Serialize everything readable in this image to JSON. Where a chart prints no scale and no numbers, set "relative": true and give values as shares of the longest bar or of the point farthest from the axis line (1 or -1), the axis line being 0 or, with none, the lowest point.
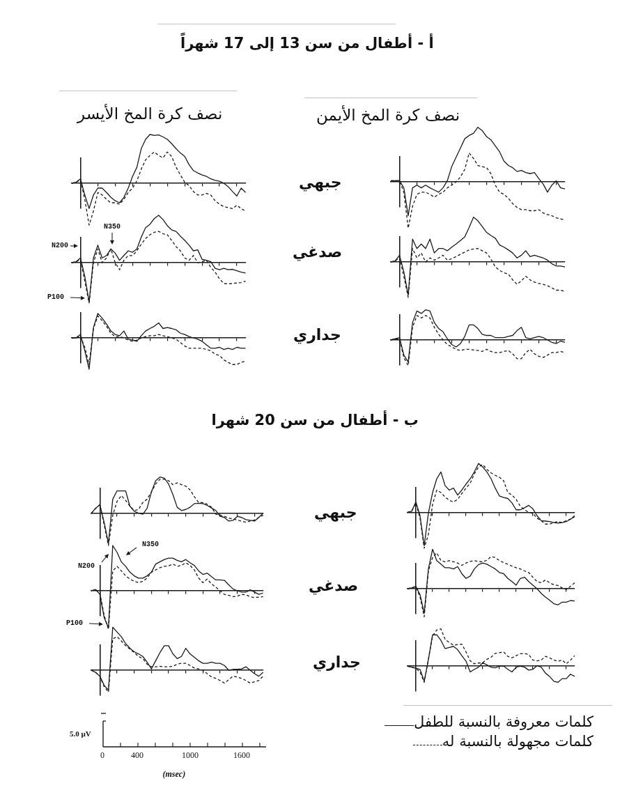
{
  "chart_data": [
    {
      "type": "line",
      "relative": true,
      "title": "أ - أطفال من سن 13 إلى 17 شهراً",
      "subtitle": "نصف كرة المخ الأيسر",
      "categories": [
        null,
        null,
        null,
        null,
        null,
        null,
        null,
        null,
        null,
        null,
        null,
        null,
        null,
        null,
        null,
        null,
        null,
        null,
        null,
        null,
        null,
        null,
        null,
        null,
        null,
        null,
        null,
        null,
        null,
        null,
        null,
        null,
        null,
        null,
        null,
        null,
        null,
        null,
        null,
        null,
        null
      ],
      "series": [
        {
          "color": "#1a1a1a",
          "line_style": "solid",
          "values": [
            0,
            0.02,
            0.09,
            -0.24,
            -0.52,
            -0.24,
            -0.1,
            -0.1,
            -0.19,
            -0.29,
            -0.36,
            -0.4,
            -0.29,
            -0.1,
            0.14,
            0.33,
            0.71,
            0.9,
            1,
            0.98,
            0.99,
            0.95,
            0.9,
            0.81,
            0.71,
            0.62,
            0.55,
            0.38,
            0.26,
            0.21,
            0.17,
            0.14,
            0.09,
            0.06,
            0.04,
            0,
            -0.07,
            -0.17,
            -0.26,
            -0.1,
            -0.19
          ]
        },
        {
          "color": "#1a1a1a",
          "line_style": "dashed",
          "values": [
            0,
            0.02,
            0.07,
            -0.33,
            -0.86,
            -0.57,
            -0.19,
            -0.24,
            -0.33,
            -0.4,
            -0.4,
            -0.43,
            -0.33,
            -0.19,
            -0.1,
            0.05,
            0.29,
            0.48,
            0.57,
            0.64,
            0.57,
            0.52,
            0.64,
            0.55,
            0.33,
            0.17,
            0.02,
            -0.05,
            -0.17,
            -0.24,
            -0.24,
            -0.21,
            -0.24,
            -0.36,
            -0.43,
            -0.48,
            -0.5,
            -0.52,
            -0.45,
            -0.52,
            -0.57
          ]
        }
      ]
    },
    {
      "type": "line",
      "relative": true,
      "subtitle": "نصف كرة المخ الأيمن",
      "ylabel": "جبهي",
      "categories": [
        null,
        null,
        null,
        null,
        null,
        null,
        null,
        null,
        null,
        null,
        null,
        null,
        null,
        null,
        null,
        null,
        null,
        null,
        null,
        null,
        null,
        null,
        null,
        null,
        null,
        null,
        null,
        null,
        null,
        null,
        null,
        null,
        null,
        null,
        null,
        null,
        null,
        null,
        null,
        null,
        null
      ],
      "series": [
        {
          "color": "#1a1a1a",
          "line_style": "solid",
          "values": [
            0.02,
            0.02,
            0.02,
            -0.11,
            -0.62,
            -0.11,
            -0.06,
            -0.11,
            -0.06,
            -0.11,
            -0.15,
            -0.19,
            -0.11,
            0.02,
            0.28,
            0.45,
            0.62,
            0.79,
            0.85,
            0.89,
            1,
            0.94,
            0.83,
            0.77,
            0.66,
            0.55,
            0.38,
            0.3,
            0.26,
            0.19,
            0.21,
            0.17,
            0.15,
            0.17,
            0.06,
            -0.04,
            -0.19,
            -0.06,
            0.02,
            -0.11,
            -0.13
          ]
        },
        {
          "color": "#1a1a1a",
          "line_style": "dashed",
          "values": [
            0.02,
            0.02,
            0.02,
            -0.19,
            -0.85,
            -0.45,
            -0.23,
            -0.19,
            -0.19,
            -0.23,
            -0.28,
            -0.23,
            -0.19,
            -0.11,
            -0.06,
            0,
            0.09,
            0.23,
            0.53,
            0.43,
            0.3,
            0.28,
            0.26,
            0.15,
            -0.06,
            -0.19,
            -0.23,
            -0.3,
            -0.4,
            -0.47,
            -0.51,
            -0.51,
            -0.53,
            -0.53,
            -0.51,
            -0.57,
            -0.6,
            -0.62,
            -0.66,
            -0.68,
            -0.7
          ]
        }
      ]
    },
    {
      "type": "line",
      "relative": true,
      "annotations": [
        "N200",
        "N350",
        "P100"
      ],
      "categories": [
        null,
        null,
        null,
        null,
        null,
        null,
        null,
        null,
        null,
        null,
        null,
        null,
        null,
        null,
        null,
        null,
        null,
        null,
        null,
        null,
        null,
        null,
        null,
        null,
        null,
        null,
        null,
        null,
        null,
        null,
        null,
        null,
        null,
        null,
        null,
        null,
        null,
        null,
        null,
        null,
        null
      ],
      "series": [
        {
          "color": "#1a1a1a",
          "line_style": "solid",
          "values": [
            0,
            0.02,
            0.1,
            -0.29,
            -0.83,
            0.1,
            0.37,
            0.1,
            0.15,
            0.29,
            0.2,
            0.05,
            0.15,
            0.25,
            0.22,
            0.29,
            0.54,
            0.74,
            0.81,
            0.93,
            1,
            0.91,
            0.78,
            0.69,
            0.66,
            0.56,
            0.47,
            0.37,
            0.25,
            0.27,
            0.07,
            0.05,
            0.02,
            -0.12,
            -0.15,
            -0.12,
            -0.15,
            -0.14,
            -0.17,
            -0.2,
            -0.22
          ]
        },
        {
          "color": "#1a1a1a",
          "line_style": "dashed",
          "values": [
            0,
            0.02,
            0.07,
            -0.39,
            -0.85,
            0,
            0.29,
            0,
            0.1,
            0.29,
            0,
            -0.15,
            0.05,
            0.15,
            0.15,
            0.25,
            0.39,
            0.51,
            0.59,
            0.64,
            0.66,
            0.61,
            0.59,
            0.47,
            0.34,
            0.25,
            0.1,
            0.05,
            0.15,
            0,
            0.02,
            0.05,
            -0.1,
            -0.2,
            -0.34,
            -0.44,
            -0.45,
            -0.44,
            -0.43,
            -0.42,
            -0.39
          ]
        }
      ]
    },
    {
      "type": "line",
      "relative": true,
      "ylabel": "صدغي",
      "categories": [
        null,
        null,
        null,
        null,
        null,
        null,
        null,
        null,
        null,
        null,
        null,
        null,
        null,
        null,
        null,
        null,
        null,
        null,
        null,
        null,
        null,
        null,
        null,
        null,
        null,
        null,
        null,
        null,
        null,
        null,
        null,
        null,
        null,
        null,
        null,
        null,
        null,
        null,
        null,
        null,
        null
      ],
      "series": [
        {
          "color": "#1a1a1a",
          "line_style": "solid",
          "values": [
            0,
            0.02,
            0.15,
            -0.22,
            -0.74,
            0.51,
            0.3,
            0.4,
            0.3,
            0.51,
            0.2,
            0.3,
            0.3,
            0.25,
            0.33,
            0.4,
            0.48,
            0.56,
            0.77,
            1,
            0.92,
            0.79,
            0.66,
            0.59,
            0.53,
            0.38,
            0.33,
            0.27,
            0.2,
            0.09,
            0.15,
            0.25,
            0.12,
            0.15,
            0.12,
            0.09,
            0.04,
            -0.04,
            -0.09,
            -0.09,
            -0.11
          ]
        },
        {
          "color": "#1a1a1a",
          "line_style": "dashed",
          "values": [
            0,
            0.02,
            0.1,
            -0.32,
            -0.79,
            0.3,
            0.09,
            0.2,
            0,
            0.09,
            0.04,
            0.09,
            0.15,
            0.04,
            0.07,
            0.12,
            0.17,
            0.22,
            0.27,
            0.29,
            0.3,
            0.25,
            0.2,
            0.07,
            -0.11,
            -0.19,
            -0.24,
            -0.27,
            -0.4,
            -0.5,
            -0.42,
            -0.32,
            -0.4,
            -0.45,
            -0.48,
            -0.5,
            -0.53,
            -0.58,
            -0.63,
            -0.63,
            -0.66
          ]
        }
      ]
    },
    {
      "type": "line",
      "relative": true,
      "categories": [
        null,
        null,
        null,
        null,
        null,
        null,
        null,
        null,
        null,
        null,
        null,
        null,
        null,
        null,
        null,
        null,
        null,
        null,
        null,
        null,
        null,
        null,
        null,
        null,
        null,
        null,
        null,
        null,
        null,
        null,
        null,
        null,
        null,
        null,
        null,
        null,
        null,
        null,
        null,
        null,
        null
      ],
      "series": [
        {
          "color": "#1a1a1a",
          "line_style": "solid",
          "values": [
            0,
            0,
            0.11,
            -0.41,
            -1,
            0.33,
            0.78,
            0.63,
            0.44,
            0.22,
            0.11,
            0.07,
            0.22,
            -0.04,
            -0.07,
            -0.11,
            0.07,
            0.22,
            0.3,
            0.37,
            0.48,
            0.3,
            0.33,
            0.3,
            0.26,
            0.15,
            0.11,
            0.04,
            0,
            -0.04,
            -0.11,
            -0.22,
            -0.33,
            -0.33,
            -0.3,
            -0.37,
            -0.33,
            -0.37,
            -0.3,
            -0.33,
            -0.33
          ]
        },
        {
          "color": "#1a1a1a",
          "line_style": "dashed",
          "values": [
            0,
            0,
            0.07,
            -0.3,
            -0.85,
            0.3,
            0.7,
            0.55,
            0.37,
            0.15,
            0.04,
            0.04,
            0,
            -0.07,
            -0.11,
            -0.07,
            0,
            0.04,
            0.07,
            0.07,
            0.11,
            0.07,
            0.04,
            0,
            -0.04,
            -0.15,
            -0.26,
            -0.33,
            -0.33,
            -0.33,
            -0.33,
            -0.37,
            -0.41,
            -0.52,
            -0.56,
            -0.7,
            -0.78,
            -0.85,
            -0.85,
            -0.78,
            -0.74
          ]
        }
      ]
    },
    {
      "type": "line",
      "relative": true,
      "ylabel": "جداري",
      "categories": [
        null,
        null,
        null,
        null,
        null,
        null,
        null,
        null,
        null,
        null,
        null,
        null,
        null,
        null,
        null,
        null,
        null,
        null,
        null,
        null,
        null,
        null,
        null,
        null,
        null,
        null,
        null,
        null,
        null,
        null,
        null,
        null,
        null,
        null,
        null,
        null,
        null,
        null,
        null,
        null,
        null
      ],
      "series": [
        {
          "color": "#1a1a1a",
          "line_style": "solid",
          "values": [
            0,
            0.04,
            0.08,
            -0.5,
            -0.73,
            0.58,
            0.96,
            0.88,
            1,
            0.96,
            0.58,
            0.38,
            0.27,
            0.04,
            -0.15,
            -0.23,
            -0.12,
            0.12,
            0.5,
            0.5,
            0.38,
            0.19,
            0.15,
            0.15,
            0.08,
            0.08,
            0.08,
            0.12,
            0.15,
            0.31,
            0.42,
            0.08,
            0.04,
            0.08,
            0.12,
            0.08,
            0,
            -0.08,
            -0.12,
            -0.04,
            -0.08
          ]
        },
        {
          "color": "#1a1a1a",
          "line_style": "dashed",
          "values": [
            0,
            0.04,
            0.04,
            -0.58,
            -0.85,
            0.42,
            0.81,
            0.73,
            0.81,
            0.73,
            0.42,
            0.19,
            0,
            -0.15,
            -0.23,
            -0.31,
            -0.35,
            -0.31,
            -0.31,
            -0.33,
            -0.35,
            -0.38,
            -0.31,
            -0.38,
            -0.42,
            -0.42,
            -0.38,
            -0.35,
            -0.46,
            -0.62,
            -0.62,
            -0.42,
            -0.31,
            -0.46,
            -0.54,
            -0.58,
            -0.5,
            -0.42,
            -0.42,
            -0.38,
            -0.42
          ]
        }
      ]
    },
    {
      "type": "line",
      "relative": true,
      "title": "ب - أطفال من سن 20 شهرا",
      "categories": [
        null,
        null,
        null,
        null,
        null,
        null,
        null,
        null,
        null,
        null,
        null,
        null,
        null,
        null,
        null,
        null,
        null,
        null,
        null,
        null,
        null,
        null,
        null,
        null,
        null,
        null,
        null,
        null,
        null,
        null,
        null,
        null,
        null,
        null,
        null,
        null,
        null,
        null,
        null,
        null,
        null
      ],
      "series": [
        {
          "color": "#1a1a1a",
          "line_style": "solid",
          "values": [
            0,
            0.14,
            0.24,
            -0.24,
            -0.82,
            0.39,
            0.62,
            0.62,
            0.62,
            0.2,
            0.06,
            0.01,
            -0.02,
            0.14,
            0.59,
            0.9,
            1,
            0.97,
            0.81,
            0.52,
            0.17,
            0.08,
            0.11,
            0.17,
            0.27,
            0.28,
            0.27,
            0.22,
            0.15,
            0.08,
            -0.08,
            -0.11,
            -0.21,
            -0.19,
            -0.08,
            -0.11,
            -0.17,
            -0.19,
            -0.21,
            -0.11,
            0.01
          ]
        },
        {
          "color": "#1a1a1a",
          "line_style": "dashed",
          "values": [
            0,
            0.14,
            0.24,
            -0.31,
            -0.88,
            -0.05,
            0.33,
            0.49,
            0.36,
            0.2,
            0.08,
            0.11,
            0.3,
            0.39,
            0.59,
            0.81,
            0.94,
            0.94,
            0.9,
            0.79,
            0.84,
            0.79,
            0.75,
            0.65,
            0.46,
            0.3,
            0.3,
            0.25,
            0.17,
            -0.02,
            -0.05,
            -0.08,
            -0.13,
            -0.15,
            -0.18,
            -0.21,
            -0.24,
            -0.21,
            -0.18,
            -0.11,
            -0.05
          ]
        }
      ]
    },
    {
      "type": "line",
      "relative": true,
      "ylabel": "جبهي",
      "categories": [
        null,
        null,
        null,
        null,
        null,
        null,
        null,
        null,
        null,
        null,
        null,
        null,
        null,
        null,
        null,
        null,
        null,
        null,
        null,
        null,
        null,
        null,
        null,
        null,
        null,
        null,
        null,
        null,
        null,
        null,
        null,
        null,
        null,
        null,
        null,
        null,
        null,
        null,
        null,
        null,
        null
      ],
      "series": [
        {
          "color": "#1a1a1a",
          "line_style": "solid",
          "values": [
            0.01,
            0.03,
            0.22,
            -0.06,
            -0.67,
            -0.01,
            0.41,
            0.69,
            0.83,
            0.55,
            0.46,
            0.5,
            0.36,
            0.46,
            0.58,
            0.69,
            0.83,
            1,
            0.93,
            0.83,
            0.69,
            0.5,
            0.34,
            0.31,
            0.29,
            0.2,
            0.06,
            0.06,
            0.1,
            0.15,
            0.08,
            -0.06,
            -0.16,
            -0.17,
            -0.18,
            -0.2,
            -0.21,
            -0.2,
            -0.18,
            -0.13,
            -0.08
          ]
        },
        {
          "color": "#1a1a1a",
          "line_style": "dashed",
          "values": [
            0.01,
            0.03,
            0.2,
            -0.11,
            -0.72,
            -0.44,
            0.17,
            0.46,
            0.41,
            0.32,
            0.25,
            0.22,
            0.27,
            0.39,
            0.5,
            0.6,
            0.79,
            0.93,
            0.98,
            0.88,
            0.81,
            0.76,
            0.72,
            0.65,
            0.41,
            0.36,
            0.27,
            0.13,
            0.06,
            0.01,
            -0.01,
            -0.11,
            -0.16,
            -0.23,
            -0.23,
            -0.2,
            -0.18,
            -0.2,
            -0.16,
            -0.13,
            -0.06
          ]
        }
      ]
    },
    {
      "type": "line",
      "relative": true,
      "annotations": [
        "N200",
        "N350",
        "P100"
      ],
      "categories": [
        null,
        null,
        null,
        null,
        null,
        null,
        null,
        null,
        null,
        null,
        null,
        null,
        null,
        null,
        null,
        null,
        null,
        null,
        null,
        null,
        null,
        null,
        null,
        null,
        null,
        null,
        null,
        null,
        null,
        null,
        null,
        null,
        null,
        null,
        null,
        null,
        null,
        null,
        null,
        null,
        null
      ],
      "series": [
        {
          "color": "#1a1a1a",
          "line_style": "solid",
          "values": [
            0,
            0.03,
            -0.08,
            -0.59,
            -0.82,
            1,
            0.85,
            0.64,
            0.54,
            0.41,
            0.33,
            0.28,
            0.28,
            0.33,
            0.41,
            0.59,
            0.64,
            0.69,
            0.72,
            0.72,
            0.67,
            0.64,
            0.69,
            0.62,
            0.56,
            0.44,
            0.36,
            0.39,
            0.31,
            0.24,
            0.24,
            0.23,
            0.13,
            0.04,
            0,
            -0.03,
            -0.03,
            0.02,
            -0.03,
            -0.08,
            -0.05
          ]
        },
        {
          "color": "#1a1a1a",
          "line_style": "dashed",
          "values": [
            0,
            0.03,
            -0.05,
            -0.54,
            -0.85,
            0.44,
            0.54,
            0.44,
            0.33,
            0.26,
            0.21,
            0.18,
            0.21,
            0.28,
            0.41,
            0.46,
            0.51,
            0.54,
            0.55,
            0.59,
            0.54,
            0.56,
            0.62,
            0.56,
            0.46,
            0.28,
            0.18,
            0.26,
            0.15,
            0.08,
            0,
            -0.08,
            -0.1,
            -0.13,
            -0.12,
            -0.08,
            -0.09,
            -0.13,
            -0.15,
            -0.14,
            -0.13
          ]
        }
      ]
    },
    {
      "type": "line",
      "relative": true,
      "ylabel": "صدغي",
      "categories": [
        null,
        null,
        null,
        null,
        null,
        null,
        null,
        null,
        null,
        null,
        null,
        null,
        null,
        null,
        null,
        null,
        null,
        null,
        null,
        null,
        null,
        null,
        null,
        null,
        null,
        null,
        null,
        null,
        null,
        null,
        null,
        null,
        null,
        null,
        null,
        null,
        null,
        null,
        null,
        null,
        null
      ],
      "series": [
        {
          "color": "#1a1a1a",
          "line_style": "solid",
          "values": [
            0,
            0.02,
            0.06,
            -0.15,
            -0.62,
            0.5,
            1,
            0.71,
            0.62,
            0.53,
            0.53,
            0.5,
            0.56,
            0.38,
            0.26,
            0.32,
            0.5,
            0.61,
            0.65,
            0.62,
            0.56,
            0.5,
            0.41,
            0.38,
            0.26,
            0.18,
            0.09,
            0.26,
            0.29,
            0.18,
            0.09,
            0,
            -0.12,
            -0.21,
            -0.29,
            -0.38,
            -0.41,
            -0.34,
            -0.34,
            -0.3,
            -0.31
          ]
        },
        {
          "color": "#1a1a1a",
          "line_style": "dashed",
          "values": [
            0,
            0.02,
            0.05,
            -0.21,
            -0.71,
            0.45,
            0.79,
            0.91,
            0.71,
            0.68,
            0.71,
            0.68,
            0.65,
            0.59,
            0.65,
            0.69,
            0.71,
            0.69,
            0.68,
            0.72,
            0.81,
            0.79,
            0.71,
            0.66,
            0.62,
            0.57,
            0.53,
            0.5,
            0.45,
            0.41,
            0.29,
            0.18,
            0.15,
            0.22,
            0.15,
            0.1,
            0.08,
            0.02,
            -0.02,
            0.06,
            0.15
          ]
        }
      ]
    },
    {
      "type": "line",
      "relative": true,
      "categories": [
        null,
        null,
        null,
        null,
        null,
        null,
        null,
        null,
        null,
        null,
        null,
        null,
        null,
        null,
        null,
        null,
        null,
        null,
        null,
        null,
        null,
        null,
        null,
        null,
        null,
        null,
        null,
        null,
        null,
        null,
        null,
        null,
        null,
        null,
        null,
        null,
        null,
        null,
        null,
        null,
        null
      ],
      "series": [
        {
          "color": "#1a1a1a",
          "line_style": "solid",
          "values": [
            0,
            -0.05,
            -0.14,
            -0.35,
            -0.46,
            1,
            0.89,
            0.78,
            0.62,
            0.51,
            0.43,
            0.38,
            0.32,
            0.19,
            0.03,
            0.22,
            0.41,
            0.57,
            0.57,
            0.38,
            0.27,
            0.32,
            0.51,
            0.38,
            0.3,
            0.22,
            0.16,
            0.16,
            0.19,
            0.16,
            0.16,
            0.11,
            0,
            0.02,
            0.02,
            0.03,
            0.08,
            0,
            -0.08,
            -0.14,
            -0.05
          ]
        },
        {
          "color": "#1a1a1a",
          "line_style": "dashed",
          "values": [
            0,
            -0.05,
            -0.14,
            -0.38,
            -0.51,
            0.73,
            0.78,
            0.68,
            0.57,
            0.49,
            0.41,
            0.32,
            0.27,
            0.14,
            0.08,
            0.08,
            0.09,
            0.08,
            0.08,
            0.09,
            0.14,
            0.16,
            0.16,
            0.11,
            0.05,
            0.03,
            0,
            -0.08,
            -0.16,
            -0.19,
            -0.24,
            -0.3,
            -0.22,
            -0.14,
            -0.16,
            -0.19,
            -0.24,
            -0.3,
            -0.27,
            -0.24,
            -0.14
          ]
        }
      ]
    },
    {
      "type": "line",
      "relative": true,
      "ylabel": "جداري",
      "legend": "bottom",
      "categories": [
        null,
        null,
        null,
        null,
        null,
        null,
        null,
        null,
        null,
        null,
        null,
        null,
        null,
        null,
        null,
        null,
        null,
        null,
        null,
        null,
        null,
        null,
        null,
        null,
        null,
        null,
        null,
        null,
        null,
        null,
        null,
        null,
        null,
        null,
        null,
        null,
        null,
        null,
        null,
        null,
        null
      ],
      "series": [
        {
          "name": "كلمات معروفة بالنسبة للطفل",
          "color": "#1a1a1a",
          "line_style": "solid",
          "values": [
            0,
            -0.03,
            -0.06,
            -0.09,
            -0.41,
            0.17,
            0.84,
            0.84,
            0.69,
            0.47,
            0.5,
            0.53,
            0.44,
            0.28,
            0.13,
            -0.16,
            -0.09,
            -0.03,
            0.09,
            0.03,
            -0.03,
            -0.05,
            0,
            0,
            -0.09,
            -0.16,
            -0.03,
            0,
            -0.03,
            -0.11,
            -0.09,
            0.01,
            -0.03,
            -0.19,
            -0.28,
            -0.41,
            -0.44,
            -0.34,
            -0.34,
            -0.22,
            -0.28
          ]
        },
        {
          "name": "كلمات مجهولة بالنسبة له",
          "color": "#1a1a1a",
          "line_style": "dashed",
          "values": [
            0,
            -0.03,
            -0.06,
            -0.16,
            -0.44,
            0.18,
            0.81,
            0.97,
            1,
            0.72,
            0.63,
            0.56,
            0.58,
            0.59,
            0.38,
            0.14,
            0.06,
            0.08,
            0.09,
            0.18,
            0.24,
            0.34,
            0.36,
            0.38,
            0.26,
            0.22,
            0.28,
            0.33,
            0.34,
            0.31,
            0.16,
            0.14,
            0.16,
            0.26,
            0.22,
            0.16,
            0.13,
            0.16,
            0.06,
            0.16,
            0.28
          ]
        }
      ]
    },
    {
      "type": "other",
      "xlabel": "(msec)",
      "ylabel": "5.0 µV",
      "annotations": [
        "0",
        "400",
        "1000",
        "1600"
      ]
    }
  ]
}
